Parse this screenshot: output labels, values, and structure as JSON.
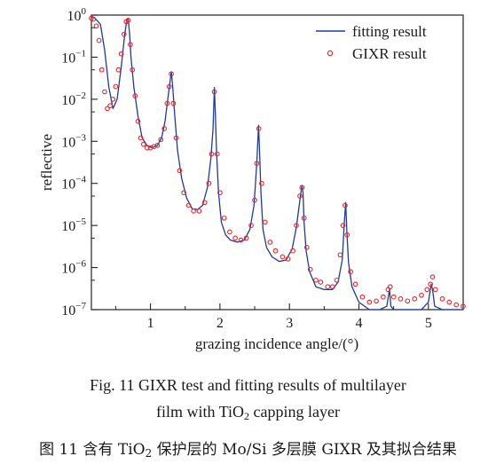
{
  "chart_data": {
    "type": "scatter",
    "xlabel": "grazing incidence angle/(°)",
    "ylabel": "reflective",
    "xlim": [
      0.15,
      5.5
    ],
    "ylim": [
      1e-07,
      1
    ],
    "yscale": "log",
    "x_ticks": [
      1,
      2,
      3,
      4,
      5
    ],
    "y_ticks": [
      {
        "value": 1,
        "base": "10",
        "exp": "0"
      },
      {
        "value": 0.1,
        "base": "10",
        "exp": "−1"
      },
      {
        "value": 0.01,
        "base": "10",
        "exp": "−2"
      },
      {
        "value": 0.001,
        "base": "10",
        "exp": "−3"
      },
      {
        "value": 0.0001,
        "base": "10",
        "exp": "−4"
      },
      {
        "value": 1e-05,
        "base": "10",
        "exp": "−5"
      },
      {
        "value": 1e-06,
        "base": "10",
        "exp": "−6"
      },
      {
        "value": 1e-07,
        "base": "10",
        "exp": "−7"
      }
    ],
    "legend_position": "top-right",
    "series": [
      {
        "name": "fitting result",
        "style": "line",
        "color": "#1f3a9c",
        "x": [
          0.15,
          0.2,
          0.28,
          0.34,
          0.4,
          0.46,
          0.52,
          0.58,
          0.63,
          0.66,
          0.68,
          0.7,
          0.72,
          0.76,
          0.82,
          0.88,
          0.95,
          1.02,
          1.1,
          1.16,
          1.21,
          1.25,
          1.28,
          1.3,
          1.32,
          1.35,
          1.39,
          1.45,
          1.52,
          1.6,
          1.68,
          1.75,
          1.82,
          1.87,
          1.9,
          1.92,
          1.935,
          1.95,
          1.98,
          2.02,
          2.08,
          2.15,
          2.25,
          2.35,
          2.43,
          2.49,
          2.53,
          2.555,
          2.57,
          2.59,
          2.62,
          2.67,
          2.75,
          2.85,
          2.95,
          3.04,
          3.1,
          3.15,
          3.18,
          3.195,
          3.21,
          3.24,
          3.29,
          3.38,
          3.5,
          3.62,
          3.7,
          3.76,
          3.79,
          3.81,
          3.825,
          3.85,
          3.9,
          4.0,
          4.15,
          4.3,
          4.4,
          4.44,
          4.46,
          4.5,
          4.6,
          4.75,
          4.9,
          5.0,
          5.04,
          5.06,
          5.09,
          5.2,
          5.35,
          5.5
        ],
        "y": [
          0.9,
          0.85,
          0.6,
          0.15,
          0.02,
          0.006,
          0.01,
          0.06,
          0.35,
          0.75,
          0.8,
          0.35,
          0.1,
          0.02,
          0.004,
          0.0012,
          0.0008,
          0.0007,
          0.0008,
          0.0012,
          0.003,
          0.01,
          0.025,
          0.045,
          0.02,
          0.004,
          0.0006,
          0.00013,
          4.5e-05,
          2.5e-05,
          2.4e-05,
          3e-05,
          8e-05,
          0.0004,
          0.002,
          0.019,
          0.004,
          0.0006,
          6e-05,
          1.2e-05,
          6e-06,
          4.5e-06,
          4e-06,
          4.5e-06,
          8e-06,
          3e-05,
          0.0003,
          0.0024,
          0.0006,
          6e-05,
          8e-06,
          3e-06,
          1.8e-06,
          1.4e-06,
          1.5e-06,
          2.8e-06,
          9e-06,
          4e-05,
          9e-05,
          6e-05,
          1.2e-05,
          2.5e-06,
          8e-07,
          3.5e-07,
          3e-07,
          3e-07,
          4.5e-07,
          1.5e-06,
          1.2e-05,
          3.5e-05,
          8e-06,
          1.3e-06,
          3.5e-07,
          1.5e-07,
          1e-07,
          1e-07,
          1.2e-07,
          3e-07,
          1.2e-07,
          1e-07,
          1e-07,
          1e-07,
          1e-07,
          1.5e-07,
          4e-07,
          3e-07,
          1.2e-07,
          1e-07,
          1e-07,
          1e-07
        ]
      },
      {
        "name": "GIXR result",
        "style": "markers",
        "color": "#e8262b",
        "x": [
          0.15,
          0.18,
          0.22,
          0.26,
          0.3,
          0.34,
          0.38,
          0.42,
          0.46,
          0.5,
          0.54,
          0.58,
          0.62,
          0.65,
          0.68,
          0.71,
          0.74,
          0.78,
          0.82,
          0.86,
          0.9,
          0.95,
          1.0,
          1.05,
          1.1,
          1.15,
          1.2,
          1.24,
          1.27,
          1.3,
          1.33,
          1.37,
          1.42,
          1.48,
          1.55,
          1.62,
          1.7,
          1.78,
          1.84,
          1.88,
          1.92,
          1.96,
          2.0,
          2.06,
          2.14,
          2.22,
          2.3,
          2.38,
          2.45,
          2.5,
          2.53,
          2.56,
          2.6,
          2.65,
          2.72,
          2.8,
          2.9,
          2.98,
          3.05,
          3.1,
          3.15,
          3.18,
          3.21,
          3.25,
          3.3,
          3.38,
          3.45,
          3.55,
          3.62,
          3.68,
          3.73,
          3.77,
          3.8,
          3.83,
          3.88,
          3.95,
          4.05,
          4.15,
          4.25,
          4.35,
          4.42,
          4.45,
          4.5,
          4.6,
          4.7,
          4.8,
          4.9,
          4.98,
          5.03,
          5.06,
          5.1,
          5.2,
          5.3,
          5.4,
          5.5
        ],
        "y": [
          0.85,
          0.8,
          0.55,
          0.25,
          0.05,
          0.015,
          0.006,
          0.007,
          0.01,
          0.02,
          0.05,
          0.12,
          0.35,
          0.7,
          0.75,
          0.2,
          0.05,
          0.012,
          0.003,
          0.0012,
          0.00085,
          0.0007,
          0.0007,
          0.00075,
          0.0008,
          0.0011,
          0.002,
          0.008,
          0.02,
          0.04,
          0.008,
          0.0012,
          0.0002,
          6e-05,
          3e-05,
          2.2e-05,
          2.2e-05,
          3.5e-05,
          0.0001,
          0.0005,
          0.015,
          0.0005,
          6e-05,
          1.5e-05,
          7e-06,
          5e-06,
          4.5e-06,
          5e-06,
          1e-05,
          4e-05,
          0.0003,
          0.002,
          0.0001,
          1.2e-05,
          4e-06,
          2.5e-06,
          1.8e-06,
          1.6e-06,
          2.5e-06,
          1e-05,
          5e-05,
          8e-05,
          1.5e-05,
          3e-06,
          9e-07,
          5e-07,
          4.5e-07,
          3.5e-07,
          3.5e-07,
          5e-07,
          2e-06,
          1e-05,
          3e-05,
          6e-06,
          8e-07,
          4e-07,
          2e-07,
          1.5e-07,
          1.6e-07,
          2e-07,
          3e-07,
          3.5e-07,
          2e-07,
          1.8e-07,
          1.6e-07,
          1.8e-07,
          2.2e-07,
          3e-07,
          4e-07,
          6e-07,
          3e-07,
          1.8e-07,
          1.5e-07,
          1.3e-07,
          1.2e-07
        ]
      }
    ]
  },
  "caption": {
    "en_line1": "Fig. 11    GIXR test and fitting results of multilayer",
    "en_line2_pre": "film with TiO",
    "en_line2_sub": "2",
    "en_line2_post": " capping layer",
    "cn_pre": "图 11    含有 TiO",
    "cn_sub": "2",
    "cn_post": " 保护层的 Mo/Si 多层膜 GIXR 及其拟合结果"
  }
}
